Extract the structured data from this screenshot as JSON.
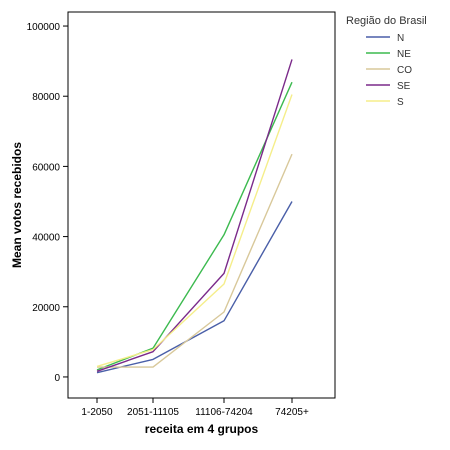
{
  "chart_data": {
    "type": "line",
    "title": "",
    "xlabel": "receita em 4 grupos",
    "ylabel": "Mean votos recebidos",
    "categories": [
      "1-2050",
      "2051-11105",
      "11106-74204",
      "74205+"
    ],
    "ylim": [
      -6000,
      104000
    ],
    "yticks": [
      0,
      20000,
      40000,
      60000,
      80000,
      100000
    ],
    "ytick_labels": [
      "0",
      "20000",
      "40000",
      "60000",
      "80000",
      "100000"
    ],
    "grid": false,
    "legend": {
      "title": "Região do Brasil",
      "placement": "top-right, outside plot"
    },
    "series": [
      {
        "name": "N",
        "color": "#4a5fa8",
        "values": [
          1200,
          5000,
          16000,
          50000
        ]
      },
      {
        "name": "NE",
        "color": "#3cba4f",
        "values": [
          2000,
          8200,
          40500,
          84000
        ]
      },
      {
        "name": "CO",
        "color": "#d8c89a",
        "values": [
          2800,
          2800,
          18500,
          63500
        ]
      },
      {
        "name": "SE",
        "color": "#7b2a8a",
        "values": [
          1600,
          7200,
          29500,
          90500
        ]
      },
      {
        "name": "S",
        "color": "#f5ee8a",
        "values": [
          3000,
          7800,
          26500,
          80500
        ]
      }
    ]
  }
}
